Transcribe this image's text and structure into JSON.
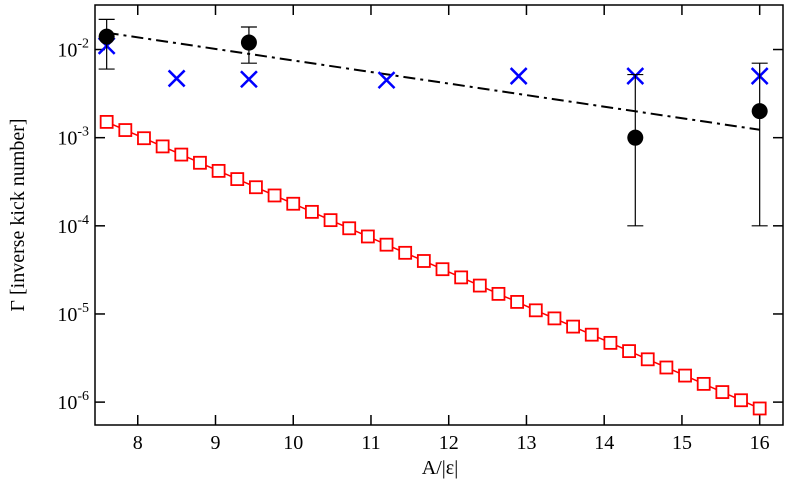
{
  "chart_data": {
    "type": "scatter",
    "x_label": "A/|ε|",
    "y_label": "Γ [inverse kick number]",
    "log_y": true,
    "xlim": [
      7.45,
      16.3
    ],
    "ylim": [
      5.5e-07,
      0.032
    ],
    "xticks": [
      8,
      9,
      10,
      11,
      12,
      13,
      14,
      15,
      16
    ],
    "yticks": [
      {
        "value": 1e-06,
        "label": "10-6"
      },
      {
        "value": 1e-05,
        "label": "10-5"
      },
      {
        "value": 0.0001,
        "label": "10-4"
      },
      {
        "value": 0.001,
        "label": "10-3"
      },
      {
        "value": 0.01,
        "label": "10-2"
      }
    ],
    "series": [
      {
        "style": "square-line",
        "color": "#ff0000",
        "x": [
          7.6,
          7.84,
          8.08,
          8.32,
          8.56,
          8.8,
          9.04,
          9.28,
          9.52,
          9.76,
          10,
          10.24,
          10.48,
          10.72,
          10.96,
          11.2,
          11.44,
          11.68,
          11.92,
          12.16,
          12.4,
          12.64,
          12.88,
          13.12,
          13.36,
          13.6,
          13.84,
          14.08,
          14.32,
          14.56,
          14.8,
          15.04,
          15.28,
          15.52,
          15.76,
          16.0
        ],
        "values": [
          0.00151,
          0.00122,
          0.000986,
          0.000796,
          0.000643,
          0.000519,
          0.00042,
          0.000339,
          0.000274,
          0.000221,
          0.000178,
          0.000144,
          0.000116,
          9.38e-05,
          7.57e-05,
          6.11e-05,
          4.94e-05,
          3.99e-05,
          3.22e-05,
          2.6e-05,
          2.1e-05,
          1.69e-05,
          1.37e-05,
          1.1e-05,
          8.91e-06,
          7.19e-06,
          5.82e-06,
          4.7e-06,
          3.79e-06,
          3.06e-06,
          2.47e-06,
          2e-06,
          1.61e-06,
          1.3e-06,
          1.05e-06,
          8.47e-07
        ]
      },
      {
        "style": "dashdot",
        "color": "#000000",
        "x": [
          7.6,
          16
        ],
        "values": [
          0.0155,
          0.00123
        ]
      },
      {
        "style": "cross",
        "color": "#0000ff",
        "x": [
          7.6,
          8.5,
          9.43,
          11.2,
          12.9,
          14.4,
          16
        ],
        "values": [
          0.011,
          0.0047,
          0.0046,
          0.0045,
          0.005,
          0.005,
          0.005
        ]
      },
      {
        "style": "circle-errorbar",
        "color": "#000000",
        "x": [
          7.6,
          9.43,
          14.4,
          16
        ],
        "values": [
          0.014,
          0.012,
          0.001,
          0.002
        ],
        "lower": [
          0.006,
          0.007,
          0.0001,
          0.0001
        ],
        "upper": [
          0.022,
          0.018,
          0.0052,
          0.007
        ]
      }
    ]
  }
}
